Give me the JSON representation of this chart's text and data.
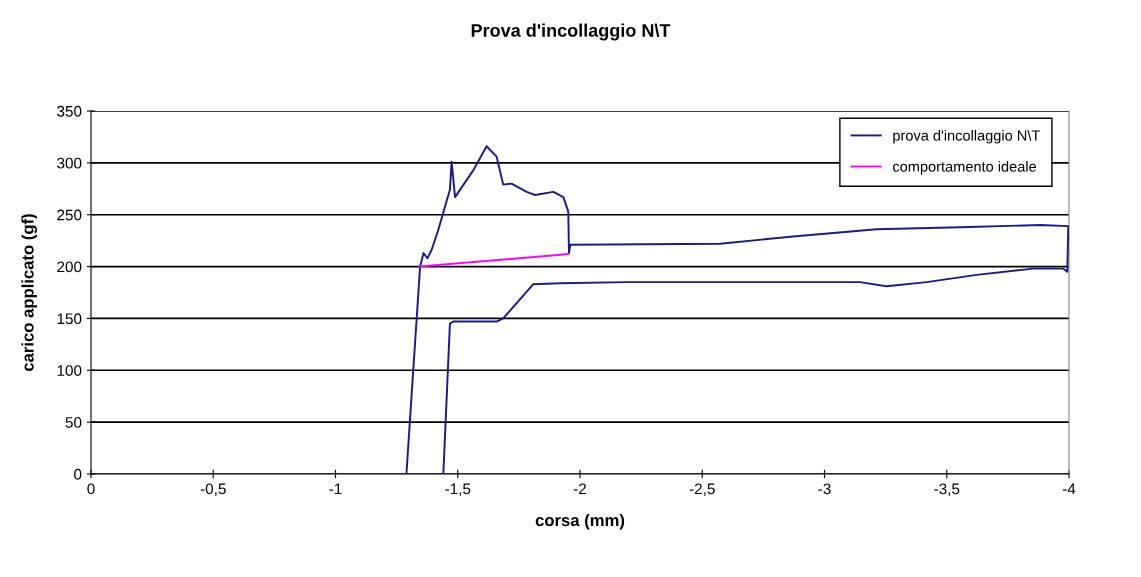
{
  "chart_data": {
    "type": "line",
    "title": "Prova d'incollaggio N\\T",
    "xlabel": "corsa (mm)",
    "ylabel": "carico applicato (gf)",
    "xlim": [
      0,
      -4
    ],
    "xticks": [
      0,
      {
        "value": -0.5,
        "label": "-0,5"
      },
      -1,
      {
        "value": -1.5,
        "label": "-1,5"
      },
      -2,
      {
        "value": -2.5,
        "label": "-2,5"
      },
      -3,
      {
        "value": -3.5,
        "label": "-3,5"
      },
      -4
    ],
    "ylim": [
      0,
      350
    ],
    "yticks": [
      0,
      50,
      100,
      150,
      200,
      250,
      300,
      350
    ],
    "grid": "y",
    "legend": "top right",
    "marker": "none",
    "line_style": "solid",
    "series": [
      {
        "name": "prova d'incollaggio N\\T",
        "color": "#1f1a8c",
        "x": [
          -1.29,
          -1.346,
          -1.36,
          -1.376,
          -1.393,
          -1.42,
          -1.448,
          -1.468,
          -1.475,
          -1.489,
          -1.564,
          -1.618,
          -1.659,
          -1.686,
          -1.72,
          -1.782,
          -1.816,
          -1.891,
          -1.932,
          -1.952,
          -1.955,
          -1.959,
          -1.96,
          -2.573,
          -2.872,
          -3.213,
          -3.554,
          -3.88,
          -3.997,
          -3.993,
          -3.977,
          -3.854,
          -3.622,
          -3.418,
          -3.254,
          -3.145,
          -2.872,
          -2.6,
          -2.19,
          -1.918,
          -1.809,
          -1.686,
          -1.659,
          -1.482,
          -1.468,
          -1.441
        ],
        "values": [
          0,
          200,
          213,
          208,
          216,
          235,
          258,
          274,
          301,
          267,
          293,
          316,
          306,
          279,
          280,
          272,
          269,
          272,
          267,
          253,
          213,
          219,
          221,
          222,
          229,
          236,
          238,
          240,
          239,
          195,
          198,
          198,
          192,
          185,
          181,
          185,
          185,
          185,
          185,
          184,
          183,
          150,
          147,
          147,
          145,
          0
        ]
      },
      {
        "name": "comportamento ideale",
        "color": "#ff00ff",
        "x": [
          -1.346,
          -1.952
        ],
        "values": [
          200,
          212
        ]
      }
    ]
  }
}
